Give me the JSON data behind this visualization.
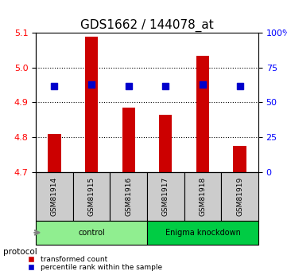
{
  "title": "GDS1662 / 144078_at",
  "samples": [
    "GSM81914",
    "GSM81915",
    "GSM81916",
    "GSM81917",
    "GSM81918",
    "GSM81919"
  ],
  "bar_values": [
    4.81,
    5.09,
    4.885,
    4.865,
    5.035,
    4.775
  ],
  "percentile_values": [
    62,
    63,
    62,
    62,
    63,
    62
  ],
  "ylim_left": [
    4.7,
    5.1
  ],
  "ylim_right": [
    0,
    100
  ],
  "yticks_left": [
    4.7,
    4.8,
    4.9,
    5.0,
    5.1
  ],
  "yticks_right": [
    0,
    25,
    50,
    75,
    100
  ],
  "ytick_labels_right": [
    "0",
    "25",
    "50",
    "75",
    "100%"
  ],
  "bar_color": "#cc0000",
  "dot_color": "#0000cc",
  "bar_bottom": 4.7,
  "groups": [
    {
      "label": "control",
      "indices": [
        0,
        1,
        2
      ],
      "color": "#90ee90"
    },
    {
      "label": "Enigma knockdown",
      "indices": [
        3,
        4,
        5
      ],
      "color": "#00cc44"
    }
  ],
  "protocol_label": "protocol",
  "legend_items": [
    {
      "label": "transformed count",
      "color": "#cc0000",
      "marker": "s"
    },
    {
      "label": "percentile rank within the sample",
      "color": "#0000cc",
      "marker": "s"
    }
  ],
  "grid_color": "#000000",
  "sample_box_color": "#cccccc",
  "title_fontsize": 11
}
